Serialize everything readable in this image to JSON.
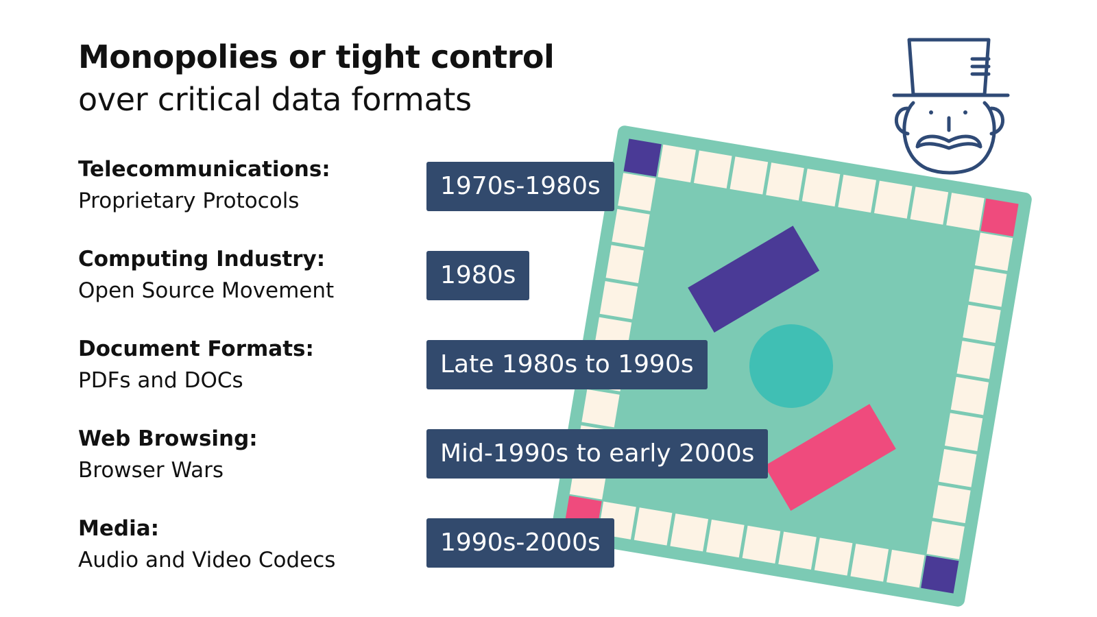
{
  "title": {
    "main": "Monopolies or tight control",
    "sub": "over critical data formats"
  },
  "rows": [
    {
      "heading": "Telecommunications:",
      "description": "Proprietary Protocols",
      "period": "1970s-1980s"
    },
    {
      "heading": "Computing Industry:",
      "description": "Open Source Movement",
      "period": "1980s"
    },
    {
      "heading": "Document Formats:",
      "description": "PDFs and DOCs",
      "period": "Late 1980s to 1990s"
    },
    {
      "heading": "Web Browsing:",
      "description": "Browser Wars",
      "period": "Mid-1990s to early 2000s"
    },
    {
      "heading": "Media:",
      "description": "Audio and Video Codecs",
      "period": "1990s-2000s"
    }
  ],
  "colors": {
    "board": "#7ccab4",
    "tile": "#fdf3e5",
    "corner_purple": "#4a3a96",
    "corner_pink": "#ef4b7d",
    "circle": "#40bfb4",
    "badge": "#324a6d",
    "mascot": "#2f4a76"
  },
  "icons": {
    "mascot": "top-hat-mustache-icon",
    "board": "board-game-icon"
  }
}
